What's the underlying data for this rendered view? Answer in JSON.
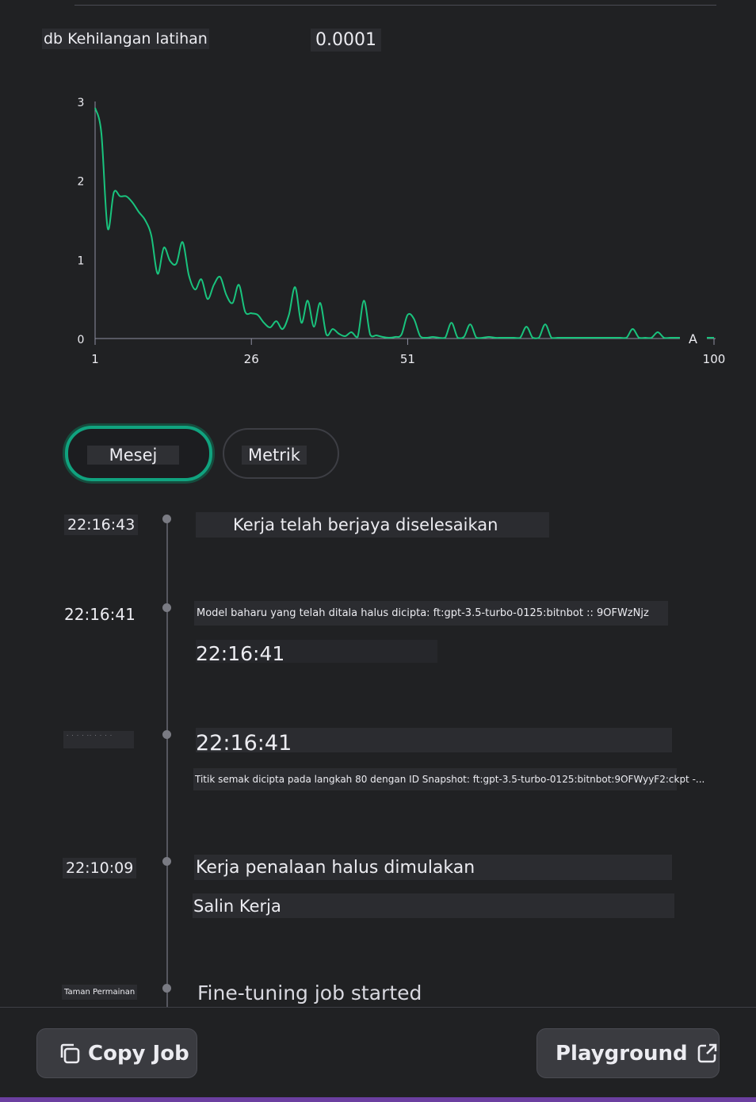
{
  "metric": {
    "label": "db Kehilangan latihan",
    "value": "0.0001"
  },
  "chart_data": {
    "type": "line",
    "title": "db Kehilangan latihan",
    "x_ticks": [
      "1",
      "26",
      "51",
      "100"
    ],
    "y_ticks": [
      "0",
      "1",
      "2",
      "3"
    ],
    "xlim": [
      1,
      100
    ],
    "ylim": [
      0,
      3
    ],
    "legend_marker": "A",
    "series": [
      {
        "name": "training loss",
        "color": "#19c37d",
        "x": [
          1,
          2,
          3,
          4,
          5,
          6,
          7,
          8,
          9,
          10,
          11,
          12,
          13,
          14,
          15,
          16,
          17,
          18,
          19,
          20,
          21,
          22,
          23,
          24,
          25,
          26,
          27,
          28,
          29,
          30,
          31,
          32,
          33,
          34,
          35,
          36,
          37,
          38,
          39,
          40,
          41,
          42,
          43,
          44,
          45,
          46,
          47,
          48,
          49,
          50,
          51,
          52,
          53,
          54,
          55,
          56,
          57,
          58,
          59,
          60,
          61,
          62,
          63,
          64,
          65,
          66,
          67,
          68,
          69,
          70,
          71,
          72,
          73,
          74,
          75,
          76,
          77,
          78,
          79,
          80,
          81,
          82,
          83,
          84,
          85,
          86,
          87,
          88,
          89,
          90,
          91,
          92,
          93,
          94,
          95,
          96,
          97,
          98,
          99,
          100
        ],
        "values": [
          2.92,
          2.6,
          1.4,
          1.85,
          1.8,
          1.8,
          1.72,
          1.6,
          1.5,
          1.3,
          0.82,
          1.15,
          0.98,
          0.95,
          1.22,
          0.8,
          0.62,
          0.75,
          0.5,
          0.68,
          0.78,
          0.55,
          0.45,
          0.68,
          0.34,
          0.32,
          0.3,
          0.2,
          0.14,
          0.22,
          0.12,
          0.3,
          0.65,
          0.2,
          0.48,
          0.15,
          0.45,
          0.05,
          0.12,
          0.06,
          0.03,
          0.08,
          0.02,
          0.48,
          0.05,
          0.04,
          0.02,
          0.01,
          0.02,
          0.05,
          0.3,
          0.25,
          0.03,
          0.01,
          0.02,
          0.01,
          0.01,
          0.2,
          0.01,
          0.02,
          0.18,
          0.01,
          0.01,
          0.02,
          0.01,
          0.01,
          0.01,
          0.01,
          0.01,
          0.15,
          0.01,
          0.01,
          0.18,
          0.01,
          0.01,
          0.01,
          0.01,
          0.01,
          0.01,
          0.01,
          0.01,
          0.01,
          0.01,
          0.01,
          0.01,
          0.01,
          0.12,
          0.01,
          0.01,
          0.01,
          0.08,
          0.01,
          0.01,
          0.01,
          0.01,
          0.01,
          0.01,
          0.01,
          0.01,
          0.01
        ]
      }
    ]
  },
  "tabs": [
    {
      "label": "Mesej",
      "active": true
    },
    {
      "label": "Metrik",
      "active": false
    }
  ],
  "events": [
    {
      "time": "22:16:43",
      "message": "Kerja telah berjaya diselesaikan"
    },
    {
      "time": "22:16:41",
      "message": "Model baharu yang telah ditala halus dicipta: ft:gpt-3.5-turbo-0125:bitnbot :: 9OFWzNjz",
      "sub": "22:16:41"
    },
    {
      "time": "· ·  ·   · ·· ·  · · ·",
      "message": "22:16:41",
      "sub": "Titik semak dicipta pada langkah 80 dengan ID Snapshot: ft:gpt-3.5-turbo-0125:bitnbot:9OFWyyF2:ckpt -..."
    },
    {
      "time": "22:10:09",
      "message": "Kerja penalaan halus dimulakan",
      "sub": "Salin Kerja"
    },
    {
      "time": "Taman Permainan",
      "message": "Fine-tuning job started"
    }
  ],
  "footer": {
    "copy_label": "Copy Job",
    "copy_icon": "copy-icon",
    "playground_label": "Playground",
    "playground_icon": "external-link-icon"
  }
}
